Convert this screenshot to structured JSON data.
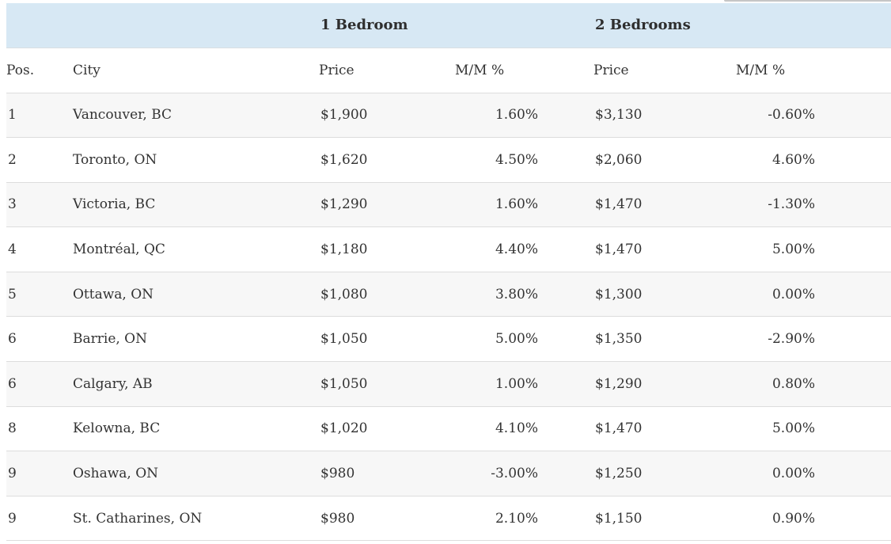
{
  "chart_data": {
    "type": "table",
    "group_headers": [
      "",
      "1 Bedroom",
      "2 Bedrooms"
    ],
    "columns": [
      "Pos.",
      "City",
      "Price",
      "M/M %",
      "Price",
      "M/M %"
    ],
    "rows": [
      {
        "pos": "1",
        "city": "Vancouver, BC",
        "br1_price": "$1,900",
        "br1_mm_pct": "1.60%",
        "br2_price": "$3,130",
        "br2_mm_pct": "-0.60%"
      },
      {
        "pos": "2",
        "city": "Toronto, ON",
        "br1_price": "$1,620",
        "br1_mm_pct": "4.50%",
        "br2_price": "$2,060",
        "br2_mm_pct": "4.60%"
      },
      {
        "pos": "3",
        "city": "Victoria, BC",
        "br1_price": "$1,290",
        "br1_mm_pct": "1.60%",
        "br2_price": "$1,470",
        "br2_mm_pct": "-1.30%"
      },
      {
        "pos": "4",
        "city": "Montréal, QC",
        "br1_price": "$1,180",
        "br1_mm_pct": "4.40%",
        "br2_price": "$1,470",
        "br2_mm_pct": "5.00%"
      },
      {
        "pos": "5",
        "city": "Ottawa, ON",
        "br1_price": "$1,080",
        "br1_mm_pct": "3.80%",
        "br2_price": "$1,300",
        "br2_mm_pct": "0.00%"
      },
      {
        "pos": "6",
        "city": "Barrie, ON",
        "br1_price": "$1,050",
        "br1_mm_pct": "5.00%",
        "br2_price": "$1,350",
        "br2_mm_pct": "-2.90%"
      },
      {
        "pos": "6",
        "city": "Calgary, AB",
        "br1_price": "$1,050",
        "br1_mm_pct": "1.00%",
        "br2_price": "$1,290",
        "br2_mm_pct": "0.80%"
      },
      {
        "pos": "8",
        "city": "Kelowna, BC",
        "br1_price": "$1,020",
        "br1_mm_pct": "4.10%",
        "br2_price": "$1,470",
        "br2_mm_pct": "5.00%"
      },
      {
        "pos": "9",
        "city": "Oshawa, ON",
        "br1_price": "$980",
        "br1_mm_pct": "-3.00%",
        "br2_price": "$1,250",
        "br2_mm_pct": "0.00%"
      },
      {
        "pos": "9",
        "city": "St. Catharines, ON",
        "br1_price": "$980",
        "br1_mm_pct": "2.10%",
        "br2_price": "$1,150",
        "br2_mm_pct": "0.90%"
      }
    ]
  },
  "colors": {
    "group_header_bg": "#d7e8f4",
    "alt_row_bg": "#f7f7f7",
    "border": "#dddddd",
    "text": "#333333",
    "top_right_line": "#c6c6c6"
  }
}
